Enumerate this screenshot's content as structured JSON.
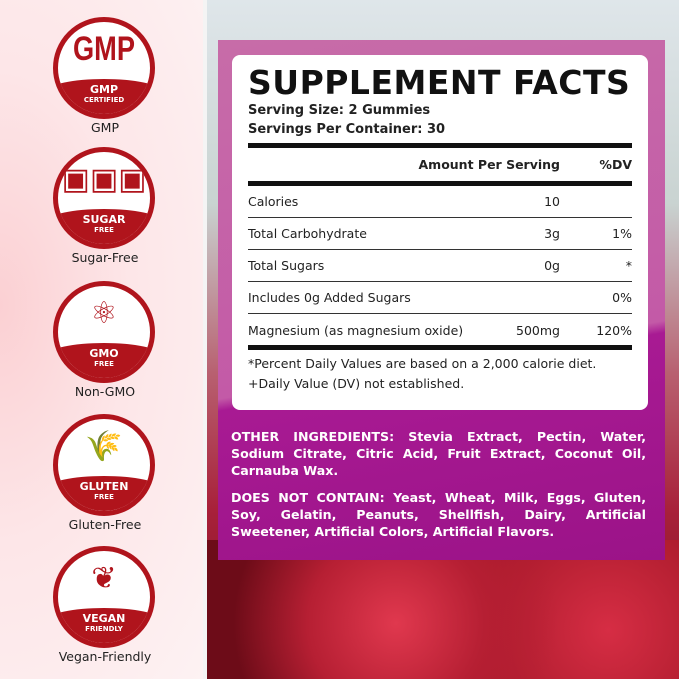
{
  "badges": [
    {
      "label": "GMP",
      "glyph": "GMP",
      "band": "GMP",
      "band_sub": "CERTIFIED",
      "icon": "gmp-icon"
    },
    {
      "label": "Sugar-Free",
      "glyph": "▣▣▣",
      "band": "SUGAR",
      "band_sub": "FREE",
      "icon": "sugar-cubes-icon"
    },
    {
      "label": "Non-GMO",
      "glyph": "⚛",
      "band": "GMO",
      "band_sub": "FREE",
      "icon": "molecule-icon"
    },
    {
      "label": "Gluten-Free",
      "glyph": "🌾",
      "band": "GLUTEN",
      "band_sub": "FREE",
      "icon": "wheat-icon"
    },
    {
      "label": "Vegan-Friendly",
      "glyph": "❦",
      "band": "VEGAN",
      "band_sub": "FRIENDLY",
      "icon": "leaf-icon"
    }
  ],
  "facts": {
    "title": "SUPPLEMENT FACTS",
    "serving_size": "Serving Size: 2 Gummies",
    "servings_per_container": "Servings Per Container: 30",
    "header": {
      "amount": "Amount Per Serving",
      "dv": "%DV"
    },
    "rows": [
      {
        "name": "Calories",
        "amount": "10",
        "dv": ""
      },
      {
        "name": "Total Carbohydrate",
        "amount": "3g",
        "dv": "1%"
      },
      {
        "name": "Total Sugars",
        "amount": "0g",
        "dv": "*"
      },
      {
        "name": "Includes 0g Added Sugars",
        "amount": "",
        "dv": "0%"
      },
      {
        "name": "Magnesium (as magnesium oxide)",
        "amount": "500mg",
        "dv": "120%"
      }
    ],
    "footnote1": "*Percent Daily Values are based on a 2,000 calorie diet.",
    "footnote2": "+Daily Value (DV) not established."
  },
  "other_ingredients": {
    "label": "OTHER INGREDIENTS:",
    "text": " Stevia Extract, Pectin, Water, Sodium Citrate, Citric Acid, Fruit Extract, Coconut Oil, Carnauba Wax."
  },
  "does_not_contain": {
    "label": "DOES NOT CONTAIN:",
    "text": " Yeast, Wheat, Milk, Eggs, Gluten, Soy, Gelatin, Peanuts, Shellfish, Dairy, Artificial Sweetener, Artificial Colors, Artificial Flavors."
  },
  "colors": {
    "badge_red": "#b0141c",
    "panel_magenta": "#a81a93"
  }
}
